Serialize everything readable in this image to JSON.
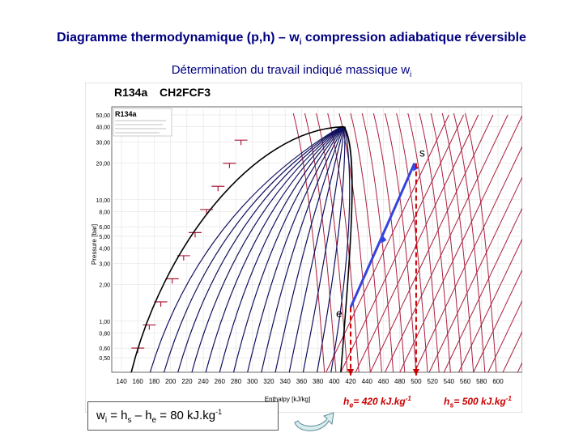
{
  "title": {
    "main": "Diagramme thermodynamique (p,h) – w",
    "main_sub": "i",
    "main_end": " compression adiabatique réversible"
  },
  "subtitle": {
    "text": "Détermination du travail indiqué massique w",
    "sub": "i"
  },
  "diagram": {
    "header_fluid": "R134a",
    "header_formula": "CH2FCF3",
    "inner_label": "R134a",
    "ylabel": "Pressure [bar]",
    "xlabel": "Enthalpy [kJ/kg]",
    "y_ticks": [
      "50,00",
      "40,00",
      "30,00",
      "20,00",
      "10,00",
      "8,00",
      "6,00",
      "5,00",
      "4,00",
      "3,00",
      "2,00",
      "1,00",
      "0,80",
      "0,60",
      "0,50"
    ],
    "x_ticks": [
      "140",
      "160",
      "180",
      "200",
      "220",
      "240",
      "260",
      "280",
      "300",
      "320",
      "340",
      "360",
      "380",
      "400",
      "420",
      "440",
      "460",
      "480",
      "500",
      "520",
      "540",
      "560",
      "580",
      "600"
    ],
    "point_e": "e",
    "point_s": "s",
    "h_e_value": 420,
    "h_s_value": 500,
    "colors": {
      "isentrope": "#101060",
      "isotherm": "#aa1e3c",
      "process_line": "#3344dd",
      "marker": "#cc0000"
    }
  },
  "formula": {
    "w": "w",
    "w_sub": "i",
    "eq1": " = h",
    "hs_sub": "s",
    "eq2": " – h",
    "he_sub": "e",
    "eq3": " = 80 kJ.kg",
    "exp": "-1"
  },
  "labels": {
    "he": {
      "h": "h",
      "sub": "e",
      "text": "= 420 kJ.kg",
      "exp": "-1"
    },
    "hs": {
      "h": "h",
      "sub": "s",
      "text": "= 500 kJ.kg",
      "exp": "-1"
    }
  },
  "icons": {
    "return_arrow": "curved-arrow-icon"
  }
}
